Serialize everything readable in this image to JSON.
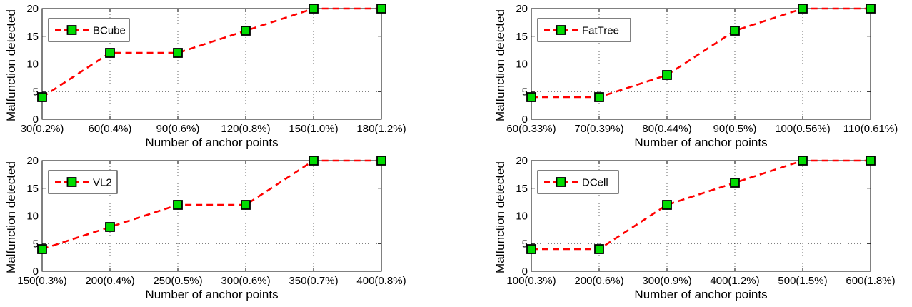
{
  "chart_data": [
    {
      "type": "line",
      "categories": [
        "30(0.2%)",
        "60(0.4%)",
        "90(0.6%)",
        "120(0.8%)",
        "150(1.0%)",
        "180(1.2%)"
      ],
      "series": [
        {
          "name": "BCube",
          "values": [
            4,
            12,
            12,
            16,
            20,
            20
          ],
          "color": "#ff0000",
          "marker_color": "#00dd00"
        }
      ],
      "xlabel": "Number of anchor points",
      "ylabel": "Malfunction detected",
      "ylim": [
        0,
        20
      ],
      "yticks": [
        "0",
        "5",
        "10",
        "15",
        "20"
      ],
      "grid": true,
      "legend": "top-left"
    },
    {
      "type": "line",
      "categories": [
        "60(0.33%)",
        "70(0.39%)",
        "80(0.44%)",
        "90(0.5%)",
        "100(0.56%)",
        "110(0.61%)"
      ],
      "series": [
        {
          "name": "FatTree",
          "values": [
            4,
            4,
            8,
            16,
            20,
            20
          ],
          "color": "#ff0000",
          "marker_color": "#00dd00"
        }
      ],
      "xlabel": "Number of anchor points",
      "ylabel": "Malfunction detected",
      "ylim": [
        0,
        20
      ],
      "yticks": [
        "0",
        "5",
        "10",
        "15",
        "20"
      ],
      "grid": true,
      "legend": "top-left"
    },
    {
      "type": "line",
      "categories": [
        "150(0.3%)",
        "200(0.4%)",
        "250(0.5%)",
        "300(0.6%)",
        "350(0.7%)",
        "400(0.8%)"
      ],
      "series": [
        {
          "name": "VL2",
          "values": [
            4,
            8,
            12,
            12,
            20,
            20
          ],
          "color": "#ff0000",
          "marker_color": "#00dd00"
        }
      ],
      "xlabel": "Number of anchor points",
      "ylabel": "Malfunction detected",
      "ylim": [
        0,
        20
      ],
      "yticks": [
        "0",
        "5",
        "10",
        "15",
        "20"
      ],
      "grid": true,
      "legend": "top-left"
    },
    {
      "type": "line",
      "categories": [
        "100(0.3%)",
        "200(0.6%)",
        "300(0.9%)",
        "400(1.2%)",
        "500(1.5%)",
        "600(1.8%)"
      ],
      "series": [
        {
          "name": "DCell",
          "values": [
            4,
            4,
            12,
            16,
            20,
            20
          ],
          "color": "#ff0000",
          "marker_color": "#00dd00"
        }
      ],
      "xlabel": "Number of anchor points",
      "ylabel": "Malfunction detected",
      "ylim": [
        0,
        20
      ],
      "yticks": [
        "0",
        "5",
        "10",
        "15",
        "20"
      ],
      "grid": true,
      "legend": "top-left"
    }
  ]
}
